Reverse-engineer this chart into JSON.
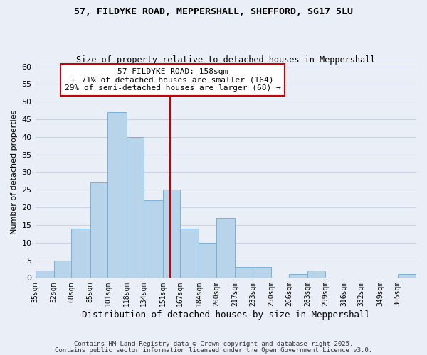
{
  "title_line1": "57, FILDYKE ROAD, MEPPERSHALL, SHEFFORD, SG17 5LU",
  "title_line2": "Size of property relative to detached houses in Meppershall",
  "xlabel": "Distribution of detached houses by size in Meppershall",
  "ylabel": "Number of detached properties",
  "bar_labels": [
    "35sqm",
    "52sqm",
    "68sqm",
    "85sqm",
    "101sqm",
    "118sqm",
    "134sqm",
    "151sqm",
    "167sqm",
    "184sqm",
    "200sqm",
    "217sqm",
    "233sqm",
    "250sqm",
    "266sqm",
    "283sqm",
    "299sqm",
    "316sqm",
    "332sqm",
    "349sqm",
    "365sqm"
  ],
  "bar_values": [
    2,
    5,
    14,
    27,
    47,
    40,
    22,
    25,
    14,
    10,
    17,
    3,
    3,
    0,
    1,
    2,
    0,
    0,
    0,
    0,
    1
  ],
  "bar_color": "#b8d4ea",
  "bar_edge_color": "#7aafd4",
  "grid_color": "#c8d4e4",
  "bg_color": "#eaeff7",
  "vline_x": 158,
  "bin_edges": [
    35,
    52,
    68,
    85,
    101,
    118,
    134,
    151,
    167,
    184,
    200,
    217,
    233,
    250,
    266,
    283,
    299,
    316,
    332,
    349,
    365,
    382
  ],
  "annotation_title": "57 FILDYKE ROAD: 158sqm",
  "annotation_line1": "← 71% of detached houses are smaller (164)",
  "annotation_line2": "29% of semi-detached houses are larger (68) →",
  "annotation_box_color": "#ffffff",
  "annotation_box_edge": "#cc0000",
  "vline_color": "#cc0000",
  "ylim": [
    0,
    60
  ],
  "yticks": [
    0,
    5,
    10,
    15,
    20,
    25,
    30,
    35,
    40,
    45,
    50,
    55,
    60
  ],
  "footer1": "Contains HM Land Registry data © Crown copyright and database right 2025.",
  "footer2": "Contains public sector information licensed under the Open Government Licence v3.0."
}
